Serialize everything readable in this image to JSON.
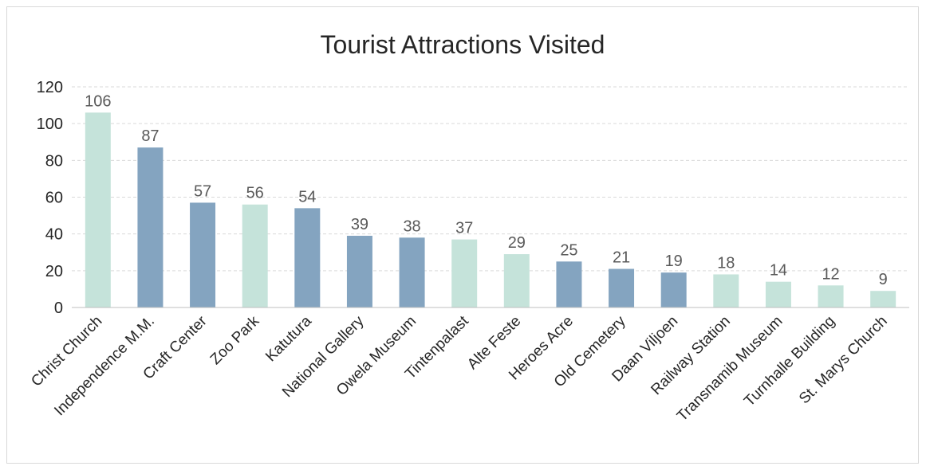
{
  "chart_data": {
    "type": "bar",
    "title": "Tourist Attractions Visited",
    "xlabel": "",
    "ylabel": "",
    "ylim": [
      0,
      120
    ],
    "yticks": [
      0,
      20,
      40,
      60,
      80,
      100,
      120
    ],
    "grid": true,
    "legend": "none",
    "categories": [
      "Christ Church",
      "Independence M.M.",
      "Craft Center",
      "Zoo Park",
      "Katutura",
      "National Gallery",
      "Owela Museum",
      "Tintenpalast",
      "Alte Feste",
      "Heroes Acre",
      "Old Cemetery",
      "Daan Viljoen",
      "Railway Station",
      "Transnamib Museum",
      "Turnhalle Building",
      "St. Marys Church"
    ],
    "values": [
      106,
      87,
      57,
      56,
      54,
      39,
      38,
      37,
      29,
      25,
      21,
      19,
      18,
      14,
      12,
      9
    ],
    "bar_colors": [
      "#c5e3da",
      "#84a4c0",
      "#84a4c0",
      "#c5e3da",
      "#84a4c0",
      "#84a4c0",
      "#84a4c0",
      "#c5e3da",
      "#c5e3da",
      "#84a4c0",
      "#84a4c0",
      "#84a4c0",
      "#c5e3da",
      "#c5e3da",
      "#c5e3da",
      "#c5e3da"
    ],
    "data_labels": true
  }
}
